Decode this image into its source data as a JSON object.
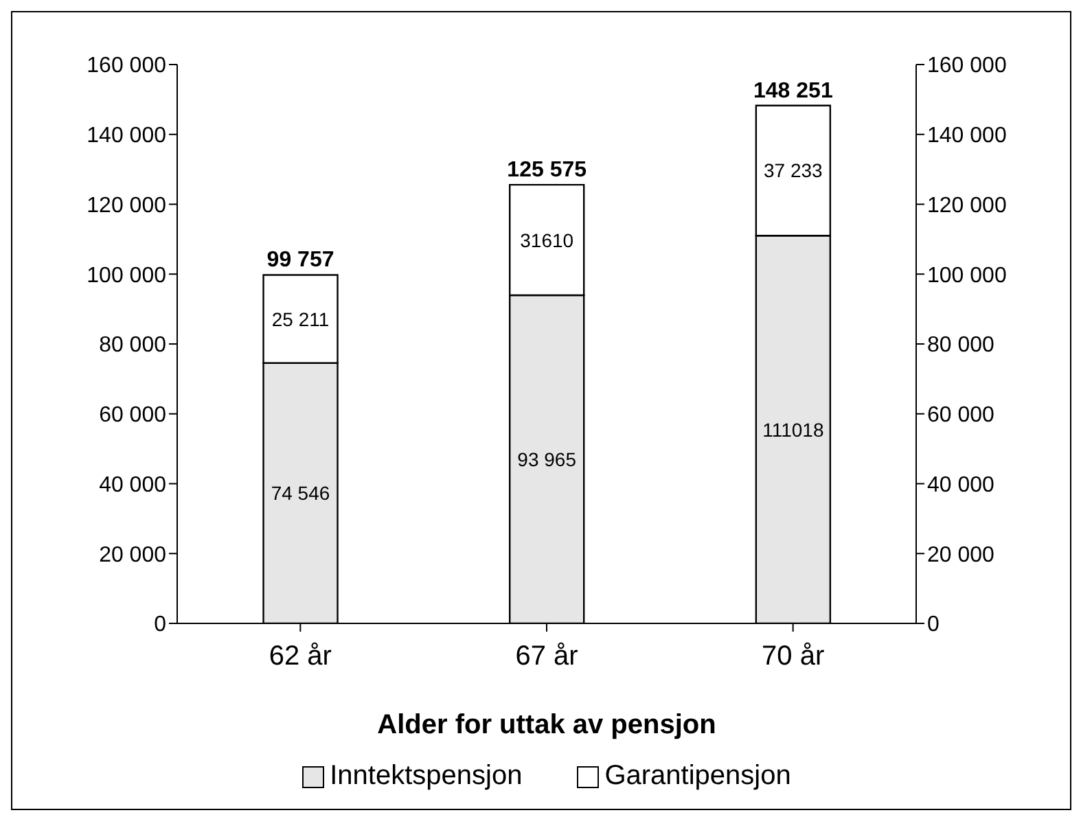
{
  "chart_data": {
    "type": "bar",
    "stacked": true,
    "categories": [
      "62 år",
      "67 år",
      "70 år"
    ],
    "series": [
      {
        "name": "Inntektspensjon",
        "color": "#e6e6e6",
        "values": [
          74546,
          93965,
          111018
        ],
        "value_labels": [
          "74 546",
          "93 965",
          "111018"
        ]
      },
      {
        "name": "Garantipensjon",
        "color": "#ffffff",
        "values": [
          25211,
          31610,
          37233
        ],
        "value_labels": [
          "25 211",
          "31610",
          "37 233"
        ]
      }
    ],
    "totals": [
      "99 757",
      "125 575",
      "148 251"
    ],
    "xlabel": "Alder for uttak av pensjon",
    "ylim": [
      0,
      160000
    ],
    "yticks": [
      {
        "value": 0,
        "label": "0"
      },
      {
        "value": 20000,
        "label": "20 000"
      },
      {
        "value": 40000,
        "label": "40 000"
      },
      {
        "value": 60000,
        "label": "60 000"
      },
      {
        "value": 80000,
        "label": "80 000"
      },
      {
        "value": 100000,
        "label": "100 000"
      },
      {
        "value": 120000,
        "label": "120 000"
      },
      {
        "value": 140000,
        "label": "140 000"
      },
      {
        "value": 160000,
        "label": "160 000"
      }
    ],
    "y2lim": [
      0,
      160000
    ],
    "y2ticks": [
      {
        "value": 0,
        "label": "0"
      },
      {
        "value": 20000,
        "label": "20 000"
      },
      {
        "value": 40000,
        "label": "40 000"
      },
      {
        "value": 60000,
        "label": "60 000"
      },
      {
        "value": 80000,
        "label": "80 000"
      },
      {
        "value": 100000,
        "label": "100 000"
      },
      {
        "value": 120000,
        "label": "120 000"
      },
      {
        "value": 140000,
        "label": "140 000"
      },
      {
        "value": 160000,
        "label": "160 000"
      }
    ],
    "grid": false,
    "legend": "bottom"
  }
}
